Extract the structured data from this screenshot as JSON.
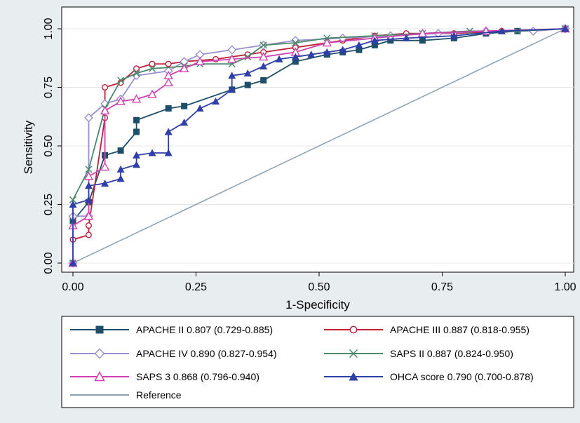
{
  "chart_data": {
    "type": "line",
    "xlabel": "1-Specificity",
    "ylabel": "Sensitivity",
    "xlim": [
      0,
      1
    ],
    "ylim": [
      0,
      1
    ],
    "xticks": [
      "0.00",
      "0.25",
      "0.50",
      "0.75",
      "1.00"
    ],
    "yticks": [
      "0.00",
      "0.25",
      "0.50",
      "0.75",
      "1.00"
    ],
    "grid": "horizontal",
    "legend_position": "bottom",
    "series": [
      {
        "name": "APACHE II 0.807 (0.729-0.885)",
        "color": "#1f4e6b",
        "marker": "square",
        "points": [
          [
            0,
            0
          ],
          [
            0,
            0.18
          ],
          [
            0.032,
            0.26
          ],
          [
            0.065,
            0.46
          ],
          [
            0.097,
            0.48
          ],
          [
            0.129,
            0.56
          ],
          [
            0.129,
            0.61
          ],
          [
            0.194,
            0.66
          ],
          [
            0.226,
            0.67
          ],
          [
            0.323,
            0.74
          ],
          [
            0.355,
            0.76
          ],
          [
            0.387,
            0.78
          ],
          [
            0.452,
            0.86
          ],
          [
            0.516,
            0.89
          ],
          [
            0.548,
            0.9
          ],
          [
            0.581,
            0.91
          ],
          [
            0.613,
            0.93
          ],
          [
            0.645,
            0.95
          ],
          [
            0.71,
            0.95
          ],
          [
            0.774,
            0.96
          ],
          [
            0.839,
            0.98
          ],
          [
            0.903,
            0.99
          ],
          [
            1.0,
            1.0
          ]
        ]
      },
      {
        "name": "APACHE III 0.887 (0.818-0.955)",
        "color": "#c0203a",
        "marker": "circle",
        "points": [
          [
            0,
            0
          ],
          [
            0,
            0.1
          ],
          [
            0.032,
            0.12
          ],
          [
            0.032,
            0.16
          ],
          [
            0.065,
            0.62
          ],
          [
            0.065,
            0.75
          ],
          [
            0.097,
            0.77
          ],
          [
            0.129,
            0.83
          ],
          [
            0.161,
            0.85
          ],
          [
            0.194,
            0.85
          ],
          [
            0.226,
            0.86
          ],
          [
            0.29,
            0.87
          ],
          [
            0.355,
            0.89
          ],
          [
            0.387,
            0.9
          ],
          [
            0.452,
            0.92
          ],
          [
            0.548,
            0.95
          ],
          [
            0.613,
            0.97
          ],
          [
            0.677,
            0.98
          ],
          [
            0.774,
            0.98
          ],
          [
            0.871,
            0.99
          ],
          [
            1.0,
            1.0
          ]
        ]
      },
      {
        "name": "APACHE IV 0.890 (0.827-0.954)",
        "color": "#9b8fd0",
        "marker": "diamond",
        "points": [
          [
            0,
            0
          ],
          [
            0,
            0.2
          ],
          [
            0.032,
            0.2
          ],
          [
            0.032,
            0.62
          ],
          [
            0.065,
            0.68
          ],
          [
            0.097,
            0.7
          ],
          [
            0.129,
            0.8
          ],
          [
            0.194,
            0.82
          ],
          [
            0.226,
            0.86
          ],
          [
            0.258,
            0.89
          ],
          [
            0.323,
            0.91
          ],
          [
            0.387,
            0.93
          ],
          [
            0.452,
            0.95
          ],
          [
            0.548,
            0.96
          ],
          [
            0.645,
            0.97
          ],
          [
            0.742,
            0.98
          ],
          [
            0.839,
            0.99
          ],
          [
            0.935,
            0.99
          ],
          [
            1.0,
            1.0
          ]
        ]
      },
      {
        "name": "SAPS II 0.887 (0.824-0.950)",
        "color": "#4a8a6a",
        "marker": "x",
        "points": [
          [
            0,
            0
          ],
          [
            0,
            0.27
          ],
          [
            0.032,
            0.4
          ],
          [
            0.065,
            0.66
          ],
          [
            0.097,
            0.78
          ],
          [
            0.129,
            0.81
          ],
          [
            0.161,
            0.83
          ],
          [
            0.226,
            0.84
          ],
          [
            0.258,
            0.85
          ],
          [
            0.323,
            0.85
          ],
          [
            0.355,
            0.88
          ],
          [
            0.387,
            0.93
          ],
          [
            0.452,
            0.94
          ],
          [
            0.516,
            0.96
          ],
          [
            0.613,
            0.97
          ],
          [
            0.71,
            0.98
          ],
          [
            0.806,
            0.99
          ],
          [
            0.903,
            0.99
          ],
          [
            1.0,
            1.0
          ]
        ]
      },
      {
        "name": "SAPS 3 0.868 (0.796-0.940)",
        "color": "#d040b0",
        "marker": "triangle-open",
        "points": [
          [
            0,
            0
          ],
          [
            0,
            0.16
          ],
          [
            0.032,
            0.2
          ],
          [
            0.032,
            0.37
          ],
          [
            0.065,
            0.41
          ],
          [
            0.065,
            0.65
          ],
          [
            0.097,
            0.69
          ],
          [
            0.129,
            0.7
          ],
          [
            0.161,
            0.72
          ],
          [
            0.194,
            0.77
          ],
          [
            0.194,
            0.8
          ],
          [
            0.226,
            0.83
          ],
          [
            0.258,
            0.86
          ],
          [
            0.323,
            0.87
          ],
          [
            0.387,
            0.88
          ],
          [
            0.452,
            0.9
          ],
          [
            0.516,
            0.94
          ],
          [
            0.613,
            0.96
          ],
          [
            0.71,
            0.98
          ],
          [
            0.839,
            0.99
          ],
          [
            1.0,
            1.0
          ]
        ]
      },
      {
        "name": "OHCA score 0.790 (0.700-0.878)",
        "color": "#2e3fa8",
        "marker": "triangle-filled",
        "points": [
          [
            0,
            0
          ],
          [
            0,
            0.25
          ],
          [
            0.032,
            0.27
          ],
          [
            0.032,
            0.33
          ],
          [
            0.065,
            0.34
          ],
          [
            0.097,
            0.36
          ],
          [
            0.097,
            0.4
          ],
          [
            0.129,
            0.42
          ],
          [
            0.129,
            0.46
          ],
          [
            0.161,
            0.47
          ],
          [
            0.194,
            0.47
          ],
          [
            0.194,
            0.56
          ],
          [
            0.226,
            0.6
          ],
          [
            0.258,
            0.66
          ],
          [
            0.29,
            0.69
          ],
          [
            0.323,
            0.74
          ],
          [
            0.323,
            0.8
          ],
          [
            0.355,
            0.81
          ],
          [
            0.387,
            0.84
          ],
          [
            0.419,
            0.87
          ],
          [
            0.452,
            0.88
          ],
          [
            0.484,
            0.89
          ],
          [
            0.516,
            0.9
          ],
          [
            0.548,
            0.91
          ],
          [
            0.581,
            0.93
          ],
          [
            0.613,
            0.95
          ],
          [
            0.677,
            0.96
          ],
          [
            0.774,
            0.97
          ],
          [
            0.871,
            0.99
          ],
          [
            1.0,
            1.0
          ]
        ]
      },
      {
        "name": "Reference",
        "color": "#8aa0b0",
        "marker": "none",
        "points": [
          [
            0,
            0
          ],
          [
            1,
            1
          ]
        ]
      }
    ]
  }
}
